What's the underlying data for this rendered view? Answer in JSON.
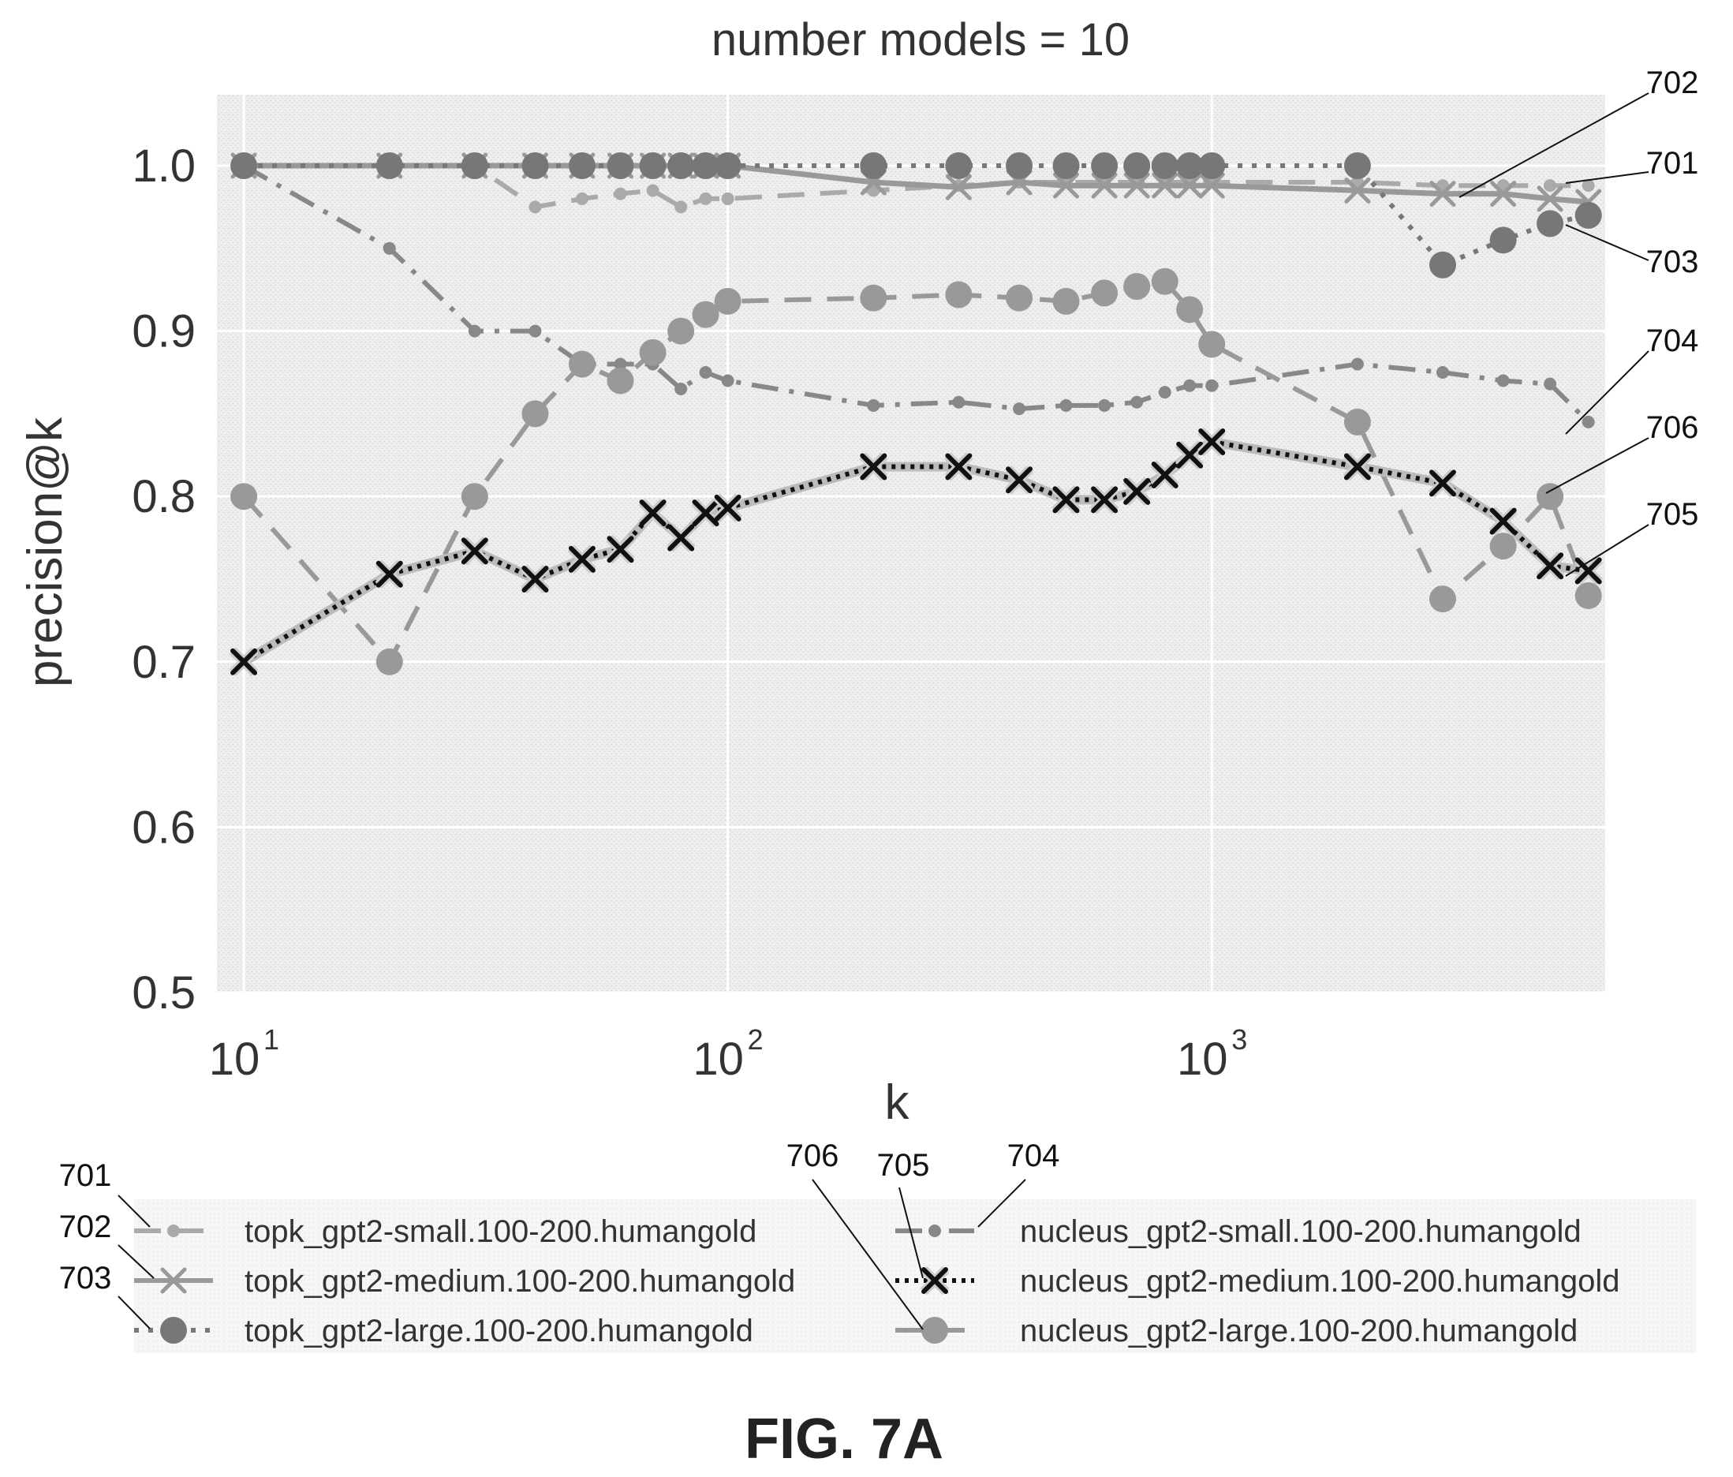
{
  "chart_data": {
    "type": "line",
    "title": "number models = 10",
    "xlabel": "k",
    "ylabel": "precision@k",
    "xscale": "log",
    "xlim": [
      8.8,
      6500
    ],
    "ylim": [
      0.5,
      1.0
    ],
    "xticks": [
      {
        "base": "10",
        "exp": "1",
        "value": 10
      },
      {
        "base": "10",
        "exp": "2",
        "value": 100
      },
      {
        "base": "10",
        "exp": "3",
        "value": 1000
      }
    ],
    "yticks": [
      "0.5",
      "0.6",
      "0.7",
      "0.8",
      "0.9",
      "1.0"
    ],
    "grid": true,
    "legend_position": "bottom",
    "series": [
      {
        "ref": "701",
        "name": "topk_gpt2-small.100-200.humangold",
        "style": "dashed",
        "marker": "small-dot",
        "color": "#aaaaaa",
        "x": [
          10,
          20,
          30,
          40,
          50,
          60,
          70,
          80,
          90,
          100,
          200,
          300,
          400,
          500,
          600,
          700,
          800,
          900,
          1000,
          2000,
          3000,
          4000,
          5000,
          6000
        ],
        "y": [
          1.0,
          1.0,
          1.0,
          0.975,
          0.98,
          0.983,
          0.985,
          0.975,
          0.98,
          0.98,
          0.985,
          0.988,
          0.99,
          0.99,
          0.99,
          0.99,
          0.99,
          0.99,
          0.99,
          0.99,
          0.988,
          0.988,
          0.988,
          0.988
        ]
      },
      {
        "ref": "702",
        "name": "topk_gpt2-medium.100-200.humangold",
        "style": "solid",
        "marker": "x",
        "color": "#999999",
        "x": [
          10,
          20,
          30,
          40,
          50,
          60,
          70,
          80,
          90,
          100,
          200,
          300,
          400,
          500,
          600,
          700,
          800,
          900,
          1000,
          2000,
          3000,
          4000,
          5000,
          6000
        ],
        "y": [
          1.0,
          1.0,
          1.0,
          1.0,
          1.0,
          1.0,
          1.0,
          1.0,
          1.0,
          1.0,
          0.99,
          0.987,
          0.99,
          0.988,
          0.988,
          0.988,
          0.988,
          0.988,
          0.988,
          0.985,
          0.983,
          0.983,
          0.98,
          0.978
        ]
      },
      {
        "ref": "703",
        "name": "topk_gpt2-large.100-200.humangold",
        "style": "dotted",
        "marker": "circle",
        "color": "#777777",
        "x": [
          10,
          20,
          30,
          40,
          50,
          60,
          70,
          80,
          90,
          100,
          200,
          300,
          400,
          500,
          600,
          700,
          800,
          900,
          1000,
          2000,
          3000,
          4000,
          5000,
          6000
        ],
        "y": [
          1.0,
          1.0,
          1.0,
          1.0,
          1.0,
          1.0,
          1.0,
          1.0,
          1.0,
          1.0,
          1.0,
          1.0,
          1.0,
          1.0,
          1.0,
          1.0,
          1.0,
          1.0,
          1.0,
          1.0,
          0.94,
          0.955,
          0.965,
          0.97
        ]
      },
      {
        "ref": "704",
        "name": "nucleus_gpt2-small.100-200.humangold",
        "style": "dashdot",
        "marker": "small-dot",
        "color": "#888888",
        "x": [
          10,
          20,
          30,
          40,
          50,
          60,
          70,
          80,
          90,
          100,
          200,
          300,
          400,
          500,
          600,
          700,
          800,
          900,
          1000,
          2000,
          3000,
          4000,
          5000,
          6000
        ],
        "y": [
          1.0,
          0.95,
          0.9,
          0.9,
          0.88,
          0.88,
          0.88,
          0.865,
          0.875,
          0.87,
          0.855,
          0.857,
          0.853,
          0.855,
          0.855,
          0.857,
          0.863,
          0.867,
          0.867,
          0.88,
          0.875,
          0.87,
          0.868,
          0.845
        ]
      },
      {
        "ref": "705",
        "name": "nucleus_gpt2-medium.100-200.humangold",
        "style": "dotted-black",
        "marker": "x-black",
        "color": "#111111",
        "x": [
          10,
          20,
          30,
          40,
          50,
          60,
          70,
          80,
          90,
          100,
          200,
          300,
          400,
          500,
          600,
          700,
          800,
          900,
          1000,
          2000,
          3000,
          4000,
          5000,
          6000
        ],
        "y": [
          0.7,
          0.753,
          0.767,
          0.75,
          0.762,
          0.768,
          0.79,
          0.775,
          0.79,
          0.793,
          0.818,
          0.818,
          0.81,
          0.798,
          0.798,
          0.803,
          0.813,
          0.825,
          0.833,
          0.818,
          0.808,
          0.785,
          0.758,
          0.755
        ]
      },
      {
        "ref": "706",
        "name": "nucleus_gpt2-large.100-200.humangold",
        "style": "dashed",
        "marker": "circle",
        "color": "#999999",
        "x": [
          10,
          20,
          30,
          40,
          50,
          60,
          70,
          80,
          90,
          100,
          200,
          300,
          400,
          500,
          600,
          700,
          800,
          900,
          1000,
          2000,
          3000,
          4000,
          5000,
          6000
        ],
        "y": [
          0.8,
          0.7,
          0.8,
          0.85,
          0.88,
          0.87,
          0.887,
          0.9,
          0.91,
          0.918,
          0.92,
          0.922,
          0.92,
          0.918,
          0.923,
          0.927,
          0.93,
          0.913,
          0.892,
          0.845,
          0.738,
          0.77,
          0.8,
          0.74
        ]
      }
    ],
    "callouts": [
      "702",
      "701",
      "703",
      "704",
      "706",
      "705"
    ],
    "legend_refs_top": [
      "701",
      "702",
      "703",
      "706",
      "705",
      "704"
    ],
    "figure_label": "FIG. 7A"
  }
}
